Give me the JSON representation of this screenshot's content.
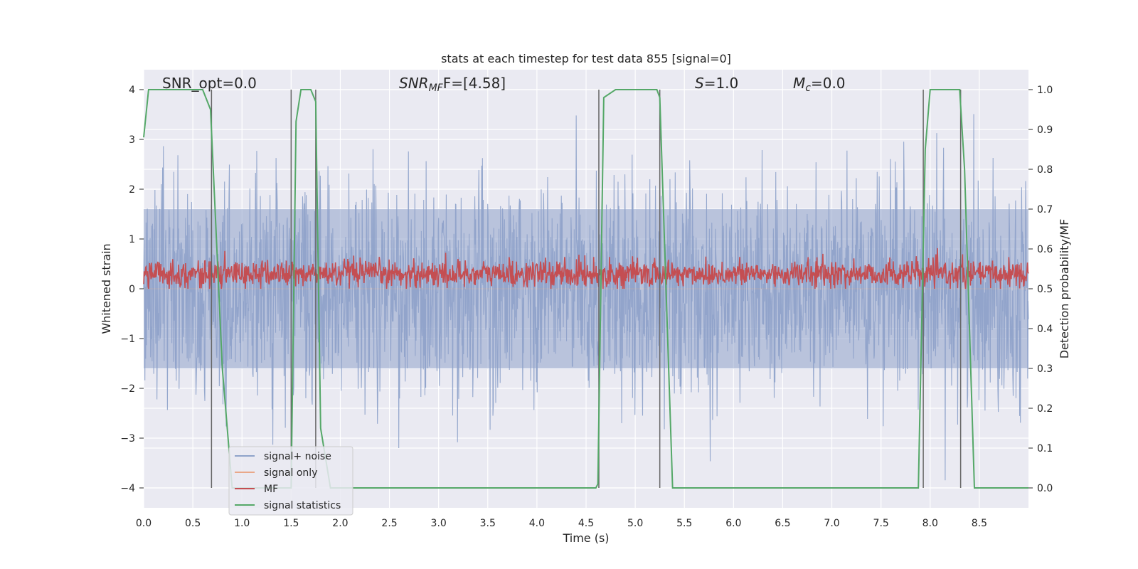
{
  "chart_data": {
    "type": "line",
    "title": "stats at each timestep for test data 855 [signal=0]",
    "xlabel": "Time (s)",
    "ylabel_left": "Whitened strain",
    "ylabel_right": "Detection probability/MF",
    "xlim": [
      0,
      9
    ],
    "ylim_left": [
      -4.4,
      4.4
    ],
    "ylim_right": [
      -0.05,
      1.05
    ],
    "xticks": [
      "0.0",
      "0.5",
      "1.0",
      "1.5",
      "2.0",
      "2.5",
      "3.0",
      "3.5",
      "4.0",
      "4.5",
      "5.0",
      "5.5",
      "6.0",
      "6.5",
      "7.0",
      "7.5",
      "8.0",
      "8.5"
    ],
    "xtick_values": [
      0,
      0.5,
      1,
      1.5,
      2,
      2.5,
      3,
      3.5,
      4,
      4.5,
      5,
      5.5,
      6,
      6.5,
      7,
      7.5,
      8,
      8.5
    ],
    "yticks_left": [
      "−4",
      "−3",
      "−2",
      "−1",
      "0",
      "1",
      "2",
      "3",
      "4"
    ],
    "ytick_values_left": [
      -4,
      -3,
      -2,
      -1,
      0,
      1,
      2,
      3,
      4
    ],
    "yticks_right": [
      "0.0",
      "0.1",
      "0.2",
      "0.3",
      "0.4",
      "0.5",
      "0.6",
      "0.7",
      "0.8",
      "0.9",
      "1.0"
    ],
    "ytick_values_right": [
      0,
      0.1,
      0.2,
      0.3,
      0.4,
      0.5,
      0.6,
      0.7,
      0.8,
      0.9,
      1.0
    ],
    "grid": true,
    "legend_placement": "lower-left",
    "annotations": {
      "snr_opt": "SNR_opt=0.0",
      "snr_mf_main": "SNR",
      "snr_mf_sub": "MF",
      "snr_mf_value": "F=[4.58]",
      "s_main": "S",
      "s_value": "=1.0",
      "mc_main": "M",
      "mc_sub": "c",
      "mc_value": "=0.0"
    },
    "series": [
      {
        "name": "signal+ noise",
        "color": "#8fa3ca",
        "kind": "noise",
        "amplitude_envelope": 1.6,
        "peak": 4.0
      },
      {
        "name": "signal only",
        "color": "#e9a889",
        "kind": "flat",
        "value": 0
      },
      {
        "name": "MF",
        "color": "#c44e52",
        "kind": "noise",
        "center": 0.3,
        "amplitude": 0.3,
        "peak": 1.0
      },
      {
        "name": "signal statistics",
        "color": "#55a868",
        "axis": "right",
        "x": [
          0,
          0.05,
          0.6,
          0.68,
          0.8,
          0.9,
          1.5,
          1.55,
          1.6,
          1.7,
          1.75,
          1.8,
          1.9,
          4.5,
          4.6,
          4.62,
          4.68,
          4.8,
          5.22,
          5.25,
          5.3,
          5.38,
          7.88,
          7.95,
          8.0,
          8.3,
          8.35,
          8.45,
          9.0
        ],
        "y": [
          0.88,
          1.0,
          1.0,
          0.95,
          0.3,
          0.0,
          0.0,
          0.92,
          1.0,
          1.0,
          0.97,
          0.15,
          0.0,
          0.0,
          0.0,
          0.01,
          0.98,
          1.0,
          1.0,
          0.98,
          0.6,
          0.0,
          0.0,
          0.85,
          1.0,
          1.0,
          0.8,
          0.0,
          0.0
        ]
      }
    ],
    "vlines": [
      0.69,
      1.5,
      1.75,
      4.63,
      5.25,
      7.93,
      8.31
    ],
    "vline_color": "#666666"
  }
}
